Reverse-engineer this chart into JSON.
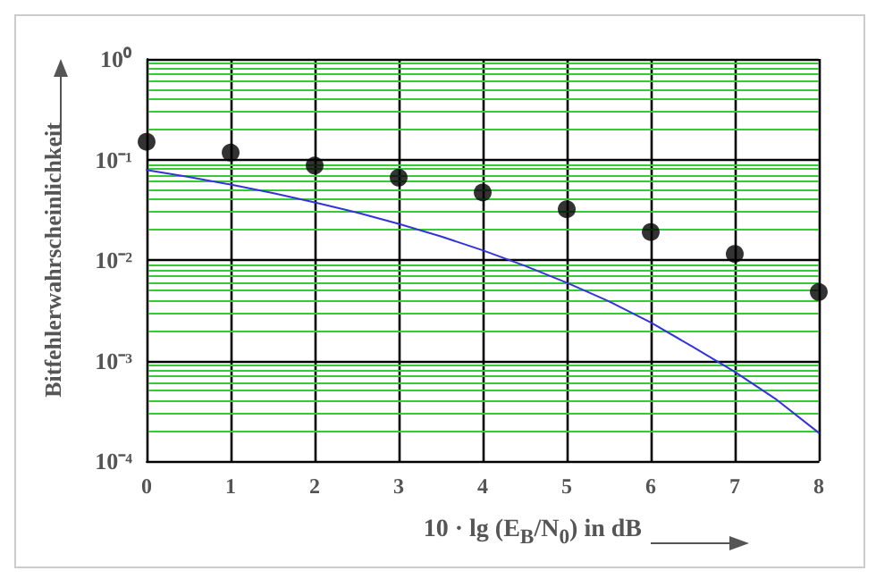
{
  "chart_data": {
    "type": "scatter",
    "xlabel": "10 · lg (E$_{B}$/N$_{0}$) in dB",
    "ylabel": "Bitfehlerwahrscheinlichkeit",
    "x": [
      0,
      1,
      2,
      3,
      4,
      5,
      6,
      7,
      8
    ],
    "series": [
      {
        "color": "#000000",
        "marker": "circle",
        "values": [
          0.15,
          0.117,
          0.087,
          0.066,
          0.047,
          0.032,
          0.019,
          0.0115,
          0.0048
        ]
      },
      {
        "type": "line",
        "color": "#3333dd",
        "marker": "none",
        "x": [
          0,
          0.5,
          1,
          1.5,
          2,
          2.5,
          3,
          3.5,
          4,
          4.5,
          5,
          5.5,
          6,
          6.5,
          7,
          7.5,
          8
        ],
        "values": [
          0.0786,
          0.0671,
          0.0563,
          0.0464,
          0.0375,
          0.0297,
          0.0229,
          0.0172,
          0.0125,
          0.00877,
          0.00595,
          0.00389,
          0.00239,
          0.00137,
          0.000773,
          0.000407,
          0.000191
        ]
      }
    ],
    "log": "y",
    "xlim": [
      0,
      8
    ],
    "xticks": [
      0,
      1,
      2,
      3,
      4,
      5,
      6,
      7,
      8
    ],
    "ylim": [
      0.0001,
      1
    ],
    "yticks": [
      {
        "value": 0.0001,
        "label": "10⁻⁴"
      },
      {
        "value": 0.0002,
        "label": null
      },
      {
        "value": 0.0003,
        "label": null
      },
      {
        "value": 0.0004,
        "label": null
      },
      {
        "value": 0.0005,
        "label": null
      },
      {
        "value": 0.0006,
        "label": null
      },
      {
        "value": 0.0007,
        "label": null
      },
      {
        "value": 0.0008,
        "label": null
      },
      {
        "value": 0.0009,
        "label": null
      },
      {
        "value": 0.001,
        "label": "10⁻³"
      },
      {
        "value": 0.002,
        "label": null
      },
      {
        "value": 0.003,
        "label": null
      },
      {
        "value": 0.004,
        "label": null
      },
      {
        "value": 0.005,
        "label": null
      },
      {
        "value": 0.006,
        "label": null
      },
      {
        "value": 0.007,
        "label": null
      },
      {
        "value": 0.008,
        "label": null
      },
      {
        "value": 0.009,
        "label": null
      },
      {
        "value": 0.01,
        "label": "10⁻²"
      },
      {
        "value": 0.02,
        "label": null
      },
      {
        "value": 0.03,
        "label": null
      },
      {
        "value": 0.04,
        "label": null
      },
      {
        "value": 0.05,
        "label": null
      },
      {
        "value": 0.06,
        "label": null
      },
      {
        "value": 0.07,
        "label": null
      },
      {
        "value": 0.08,
        "label": null
      },
      {
        "value": 0.09,
        "label": null
      },
      {
        "value": 0.1,
        "label": "10⁻¹"
      },
      {
        "value": 0.2,
        "label": null
      },
      {
        "value": 0.3,
        "label": null
      },
      {
        "value": 0.4,
        "label": null
      },
      {
        "value": 0.5,
        "label": null
      },
      {
        "value": 0.6,
        "label": null
      },
      {
        "value": 0.7,
        "label": null
      },
      {
        "value": 0.8,
        "label": null
      },
      {
        "value": 0.9,
        "label": null
      },
      {
        "value": 1,
        "label": "10⁰"
      }
    ],
    "grid": true
  }
}
